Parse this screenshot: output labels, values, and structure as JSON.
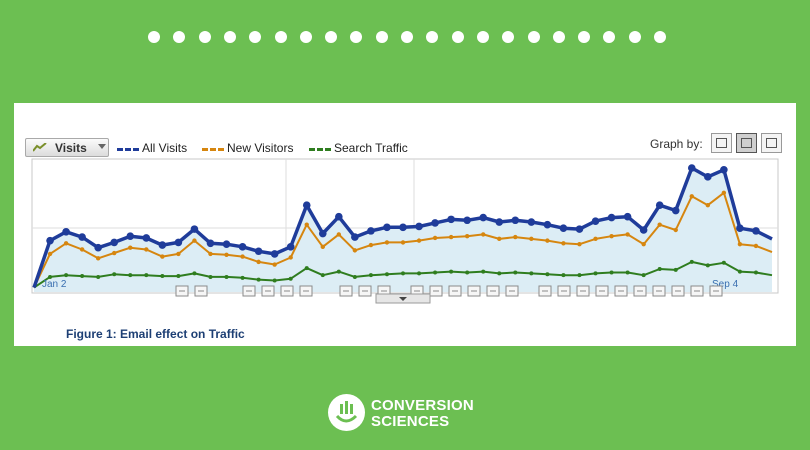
{
  "colors": {
    "background": "#6cbf52",
    "all_visits": "#1f3c9a",
    "new_visitors": "#d6860f",
    "search_traffic": "#2f7d1f",
    "area_fill": "#dcedf5"
  },
  "controls": {
    "metric_label": "Visits",
    "graph_by_label": "Graph by:"
  },
  "legend": [
    "All Visits",
    "New Visitors",
    "Search Traffic"
  ],
  "chart_data": {
    "type": "line",
    "title": "",
    "xlabel": "",
    "ylabel": "",
    "x_tick_labels": [
      "Jan 2",
      "Sep 4"
    ],
    "grid": true,
    "legend_position": "top-left",
    "series": [
      {
        "name": "All Visits",
        "values": [
          5,
          58,
          68,
          62,
          50,
          56,
          63,
          61,
          53,
          56,
          71,
          55,
          54,
          51,
          46,
          43,
          51,
          98,
          66,
          85,
          62,
          69,
          73,
          73,
          74,
          78,
          82,
          81,
          84,
          79,
          81,
          79,
          76,
          72,
          71,
          80,
          84,
          85,
          70,
          98,
          92,
          140,
          130,
          138,
          72,
          69,
          60
        ]
      },
      {
        "name": "New Visitors",
        "values": [
          5,
          43,
          55,
          48,
          38,
          44,
          50,
          48,
          40,
          43,
          58,
          43,
          42,
          40,
          34,
          31,
          39,
          76,
          51,
          65,
          47,
          53,
          56,
          56,
          58,
          61,
          62,
          63,
          65,
          60,
          62,
          60,
          58,
          55,
          54,
          60,
          63,
          65,
          54,
          76,
          70,
          108,
          98,
          112,
          54,
          52,
          45
        ]
      },
      {
        "name": "Search Traffic",
        "values": [
          5,
          17,
          19,
          18,
          17,
          20,
          19,
          19,
          18,
          18,
          21,
          17,
          17,
          16,
          14,
          13,
          15,
          27,
          19,
          23,
          17,
          19,
          20,
          21,
          21,
          22,
          23,
          22,
          23,
          21,
          22,
          21,
          20,
          19,
          19,
          21,
          22,
          22,
          19,
          26,
          25,
          34,
          30,
          33,
          23,
          22,
          19
        ]
      }
    ]
  },
  "caption": "Figure 1: Email effect on Traffic",
  "brand": {
    "line1": "CONVERSION",
    "line2": "SCIENCES"
  }
}
